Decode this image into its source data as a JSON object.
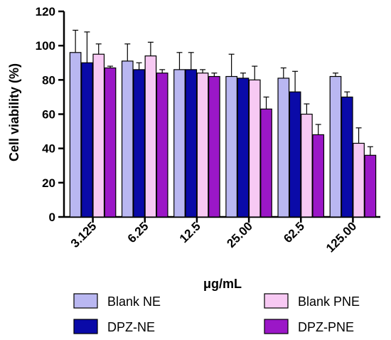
{
  "chart_data": {
    "type": "bar",
    "xlabel": "μg/mL",
    "ylabel": "Cell viability (%)",
    "ylim": [
      0,
      120
    ],
    "yticks": [
      0,
      20,
      40,
      60,
      80,
      100,
      120
    ],
    "categories": [
      "3.125",
      "6.25",
      "12.5",
      "25.00",
      "62.5",
      "125.00"
    ],
    "legend_position": "bottom",
    "series": [
      {
        "name": "Blank NE",
        "color": "#b9b7f1",
        "values": [
          96,
          91,
          86,
          82,
          81,
          82
        ],
        "errors": [
          13,
          10,
          10,
          13,
          6,
          2
        ]
      },
      {
        "name": "DPZ-NE",
        "color": "#0a0aa8",
        "values": [
          90,
          86,
          86,
          81,
          73,
          70
        ],
        "errors": [
          18,
          4,
          10,
          3,
          12,
          3
        ]
      },
      {
        "name": "Blank PNE",
        "color": "#f7c9f3",
        "values": [
          95,
          94,
          84,
          80,
          60,
          43
        ],
        "errors": [
          6,
          8,
          2,
          8,
          6,
          9
        ]
      },
      {
        "name": "DPZ-PNE",
        "color": "#9b17c7",
        "values": [
          87,
          84,
          82,
          63,
          48,
          36
        ],
        "errors": [
          1,
          2,
          2,
          7,
          6,
          5
        ]
      }
    ]
  }
}
